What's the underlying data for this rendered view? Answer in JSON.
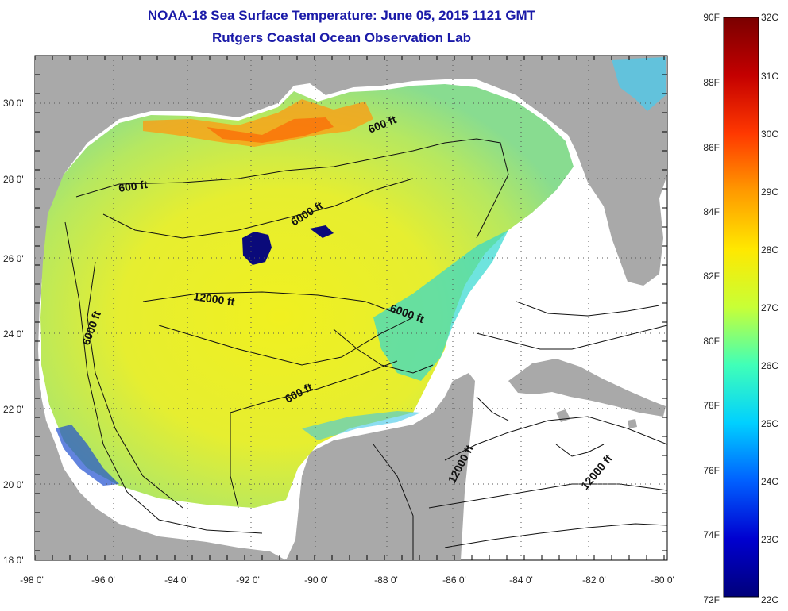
{
  "title": {
    "line1": "NOAA-18 Sea Surface Temperature:  June 05, 2015 1121 GMT",
    "line2": "Rutgers Coastal Ocean Observation Lab"
  },
  "axes": {
    "lon_labels": [
      "-98 0'",
      "-96 0'",
      "-94 0'",
      "-92 0'",
      "-90 0'",
      "-88 0'",
      "-86 0'",
      "-84 0'",
      "-82 0'",
      "-80 0'"
    ],
    "lat_labels": [
      "30 0'",
      "28 0'",
      "26 0'",
      "24 0'",
      "22 0'",
      "20 0'",
      "18 0'"
    ]
  },
  "contour_labels": [
    "600 ft",
    "600 ft",
    "6000 ft",
    "12000 ft",
    "6000 ft",
    "6000 ft",
    "600 ft",
    "12000 ft",
    "12000 ft"
  ],
  "colorbar": {
    "fahrenheit": [
      "90F",
      "88F",
      "86F",
      "84F",
      "82F",
      "80F",
      "78F",
      "76F",
      "74F",
      "72F"
    ],
    "celsius": [
      "32C",
      "31C",
      "30C",
      "29C",
      "28C",
      "27C",
      "26C",
      "25C",
      "24C",
      "23C",
      "22C"
    ]
  },
  "colors": {
    "land": "#a9a9a9",
    "no_data": "#ffffff",
    "title": "#1a1aa8",
    "scale_hot": "#7a0000",
    "scale_mid": "#ffff00",
    "scale_cold": "#00007a"
  }
}
